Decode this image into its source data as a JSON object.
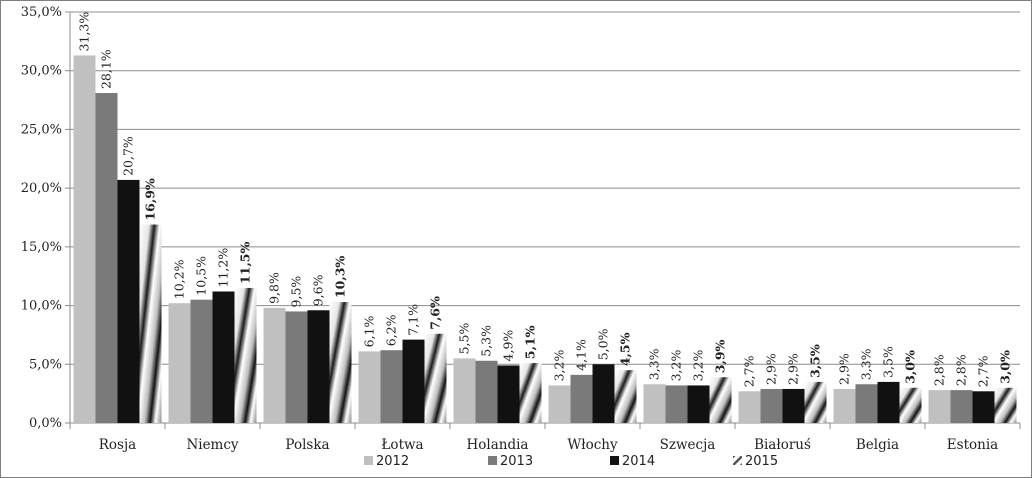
{
  "chart_data": {
    "type": "bar",
    "categories": [
      "Rosja",
      "Niemcy",
      "Polska",
      "Łotwa",
      "Holandia",
      "Włochy",
      "Szwecja",
      "Białoruś",
      "Belgia",
      "Estonia"
    ],
    "series": [
      {
        "name": "2012",
        "values": [
          31.3,
          10.2,
          9.8,
          6.1,
          5.5,
          3.2,
          3.3,
          2.7,
          2.9,
          2.8
        ],
        "labels": [
          "31,3%",
          "10,2%",
          "9,8%",
          "6,1%",
          "5,5%",
          "3,2%",
          "3,3%",
          "2,7%",
          "2,9%",
          "2,8%"
        ],
        "color": "#c0c0c0"
      },
      {
        "name": "2013",
        "values": [
          28.1,
          10.5,
          9.5,
          6.2,
          5.3,
          4.1,
          3.2,
          2.9,
          3.3,
          2.8
        ],
        "labels": [
          "28,1%",
          "10,5%",
          "9,5%",
          "6,2%",
          "5,3%",
          "4,1%",
          "3,2%",
          "2,9%",
          "3,3%",
          "2,8%"
        ],
        "color": "#7a7a7a"
      },
      {
        "name": "2014",
        "values": [
          20.7,
          11.2,
          9.6,
          7.1,
          4.9,
          5.0,
          3.2,
          2.9,
          3.5,
          2.7
        ],
        "labels": [
          "20,7%",
          "11,2%",
          "9,6%",
          "7,1%",
          "4,9%",
          "5,0%",
          "3,2%",
          "2,9%",
          "3,5%",
          "2,7%"
        ],
        "color": "#111111"
      },
      {
        "name": "2015",
        "values": [
          16.9,
          11.5,
          10.3,
          7.6,
          5.1,
          4.5,
          3.9,
          3.5,
          3.0,
          3.0
        ],
        "labels": [
          "16,9%",
          "11,5%",
          "10,3%",
          "7,6%",
          "5,1%",
          "4,5%",
          "3,9%",
          "3,5%",
          "3,0%",
          "3,0%"
        ],
        "color": "pattern"
      }
    ],
    "y_ticks": [
      "0,0%",
      "5,0%",
      "10,0%",
      "15,0%",
      "20,0%",
      "25,0%",
      "30,0%",
      "35,0%"
    ],
    "ylim": [
      0,
      35
    ],
    "grid": true,
    "legend_position": "bottom-center",
    "title": "",
    "xlabel": "",
    "ylabel": ""
  }
}
